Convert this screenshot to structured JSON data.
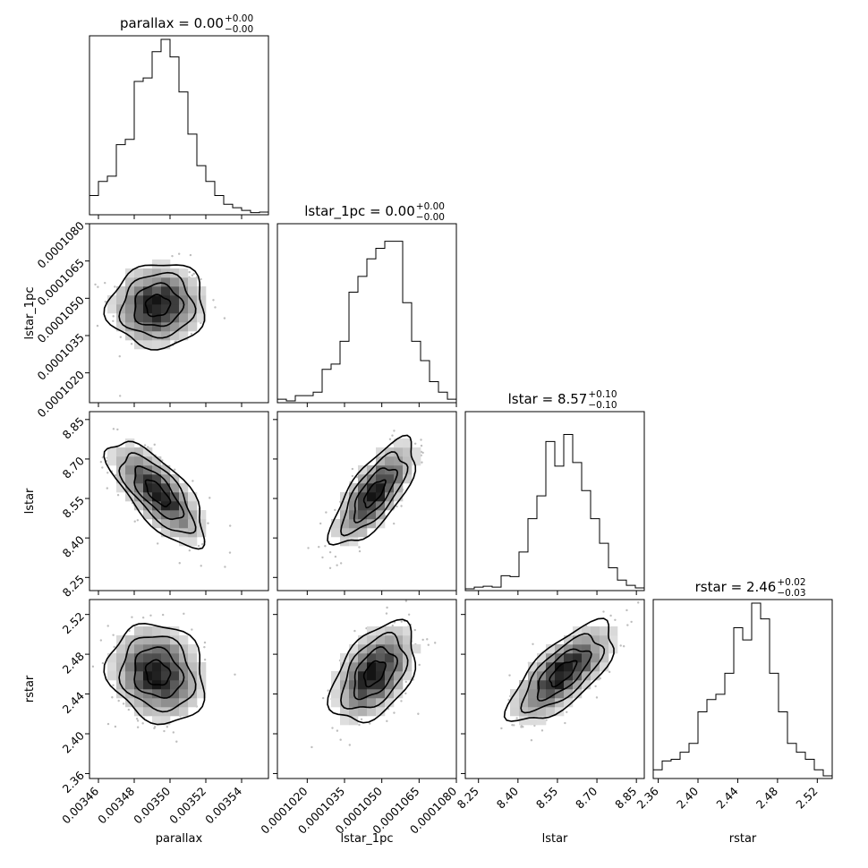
{
  "chart_data": {
    "type": "corner",
    "parameters": [
      "parallax",
      "lstar_1pc",
      "lstar",
      "rstar"
    ],
    "axis_labels": [
      "parallax",
      "lstar_1pc",
      "lstar",
      "rstar"
    ],
    "titles": [
      {
        "param": "parallax",
        "main": "parallax = 0.00",
        "sup": "+0.00",
        "sub": "−0.00"
      },
      {
        "param": "lstar_1pc",
        "main": "lstar_1pc = 0.00",
        "sup": "+0.00",
        "sub": "−0.00"
      },
      {
        "param": "lstar",
        "main": "lstar = 8.57",
        "sup": "+0.10",
        "sub": "−0.10"
      },
      {
        "param": "rstar",
        "main": "rstar = 2.46",
        "sup": "+0.02",
        "sub": "−0.03"
      }
    ],
    "ranges": [
      [
        0.003455,
        0.003555
      ],
      [
        0.0001008,
        0.000108
      ],
      [
        8.2,
        8.88
      ],
      [
        2.355,
        2.535
      ]
    ],
    "ticks": [
      {
        "values": [
          0.00346,
          0.00348,
          0.0035,
          0.00352,
          0.00354
        ],
        "labels": [
          "0.00346",
          "0.00348",
          "0.00350",
          "0.00352",
          "0.00354"
        ]
      },
      {
        "values": [
          0.000102,
          0.0001035,
          0.000105,
          0.0001065,
          0.000108
        ],
        "labels": [
          "0.0001020",
          "0.0001035",
          "0.0001050",
          "0.0001065",
          "0.0001080"
        ]
      },
      {
        "values": [
          8.25,
          8.4,
          8.55,
          8.7,
          8.85
        ],
        "labels": [
          "8.25",
          "8.40",
          "8.55",
          "8.70",
          "8.85"
        ]
      },
      {
        "values": [
          2.36,
          2.4,
          2.44,
          2.48,
          2.52
        ],
        "labels": [
          "2.36",
          "2.40",
          "2.44",
          "2.48",
          "2.52"
        ]
      }
    ],
    "histograms": [
      [
        0.11,
        0.19,
        0.22,
        0.4,
        0.43,
        0.76,
        0.78,
        0.93,
        1.0,
        0.9,
        0.7,
        0.46,
        0.28,
        0.19,
        0.11,
        0.06,
        0.04,
        0.025,
        0.012,
        0.015
      ],
      [
        0.02,
        0.01,
        0.04,
        0.04,
        0.06,
        0.19,
        0.22,
        0.35,
        0.63,
        0.72,
        0.82,
        0.88,
        0.92,
        0.92,
        0.57,
        0.35,
        0.24,
        0.12,
        0.06,
        0.02
      ],
      [
        0.01,
        0.02,
        0.025,
        0.02,
        0.085,
        0.08,
        0.22,
        0.41,
        0.54,
        0.85,
        0.71,
        0.89,
        0.73,
        0.57,
        0.41,
        0.27,
        0.13,
        0.06,
        0.03,
        0.015
      ],
      [
        0.05,
        0.1,
        0.11,
        0.15,
        0.2,
        0.38,
        0.45,
        0.48,
        0.6,
        0.86,
        0.79,
        1.0,
        0.91,
        0.6,
        0.38,
        0.2,
        0.15,
        0.11,
        0.05,
        0.015
      ]
    ],
    "pairs": [
      {
        "x": 0,
        "y": 1,
        "mean": [
          0.003493,
          0.0001047
        ],
        "sd": [
          1.35e-05,
          8.5e-07
        ],
        "rho": 0.05
      },
      {
        "x": 0,
        "y": 2,
        "mean": [
          0.003493,
          8.57
        ],
        "sd": [
          1.35e-05,
          0.1
        ],
        "rho": -0.72
      },
      {
        "x": 1,
        "y": 2,
        "mean": [
          0.0001047,
          8.57
        ],
        "sd": [
          8.5e-07,
          0.1
        ],
        "rho": 0.72
      },
      {
        "x": 0,
        "y": 3,
        "mean": [
          0.003493,
          2.461
        ],
        "sd": [
          1.35e-05,
          0.025
        ],
        "rho": -0.15
      },
      {
        "x": 1,
        "y": 3,
        "mean": [
          0.0001047,
          2.461
        ],
        "sd": [
          8.5e-07,
          0.025
        ],
        "rho": 0.45
      },
      {
        "x": 2,
        "y": 3,
        "mean": [
          8.57,
          2.461
        ],
        "sd": [
          0.1,
          0.025
        ],
        "rho": 0.7
      }
    ],
    "contour_levels_sigma": [
      0.5,
      1.0,
      1.5,
      2.0
    ]
  }
}
